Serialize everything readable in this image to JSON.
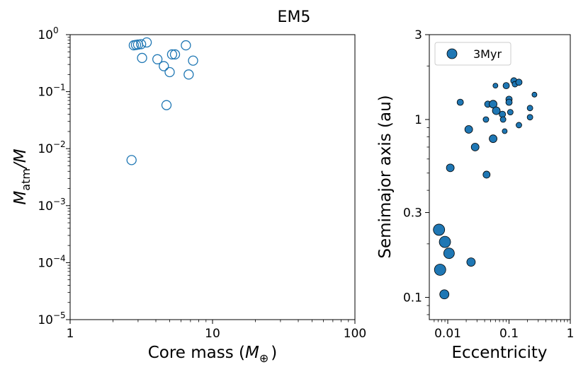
{
  "title": "EM5",
  "chart_data": [
    {
      "type": "scatter",
      "xlabel": "Core mass ($M_\\oplus$)",
      "xlabel_main": "Core mass (",
      "xlabel_sym": "M",
      "xlabel_sub": "⊕",
      "xlabel_end": ")",
      "ylabel": "$M_{atm}/M$",
      "ylabel_m": "M",
      "ylabel_sub": "atm",
      "ylabel_rest": "/M",
      "xscale": "log",
      "yscale": "log",
      "xlim": [
        1,
        100
      ],
      "ylim": [
        1e-05,
        1
      ],
      "xticks": [
        {
          "value": 1,
          "label": "1"
        },
        {
          "value": 10,
          "label": "10"
        },
        {
          "value": 100,
          "label": "100"
        }
      ],
      "yticks": [
        {
          "value": 1,
          "base": "10",
          "exp": "0"
        },
        {
          "value": 0.1,
          "base": "10",
          "exp": "−1"
        },
        {
          "value": 0.01,
          "base": "10",
          "exp": "−2"
        },
        {
          "value": 0.001,
          "base": "10",
          "exp": "−3"
        },
        {
          "value": 0.0001,
          "base": "10",
          "exp": "−4"
        },
        {
          "value": 1e-05,
          "base": "10",
          "exp": "−5"
        }
      ],
      "marker": "open-circle",
      "color": "#1f77b4",
      "points": [
        {
          "x": 2.7,
          "y": 0.0063
        },
        {
          "x": 2.8,
          "y": 0.65
        },
        {
          "x": 2.9,
          "y": 0.66
        },
        {
          "x": 3.0,
          "y": 0.67
        },
        {
          "x": 3.15,
          "y": 0.68
        },
        {
          "x": 3.2,
          "y": 0.39
        },
        {
          "x": 3.45,
          "y": 0.73
        },
        {
          "x": 4.1,
          "y": 0.37
        },
        {
          "x": 4.55,
          "y": 0.28
        },
        {
          "x": 4.75,
          "y": 0.058
        },
        {
          "x": 5.0,
          "y": 0.22
        },
        {
          "x": 5.2,
          "y": 0.45
        },
        {
          "x": 5.45,
          "y": 0.45
        },
        {
          "x": 6.5,
          "y": 0.65
        },
        {
          "x": 6.8,
          "y": 0.2
        },
        {
          "x": 7.3,
          "y": 0.35
        }
      ]
    },
    {
      "type": "scatter",
      "xlabel": "Eccentricity",
      "ylabel": "Semimajor axis (au)",
      "xscale": "log",
      "yscale": "log",
      "xlim": [
        0.005,
        1
      ],
      "ylim": [
        0.075,
        3
      ],
      "xticks": [
        {
          "value": 0.01,
          "label": "0.01"
        },
        {
          "value": 0.1,
          "label": "0.1"
        },
        {
          "value": 1,
          "label": "1"
        }
      ],
      "yticks": [
        {
          "value": 0.1,
          "label": "0.1"
        },
        {
          "value": 0.3,
          "label": "0.3"
        },
        {
          "value": 1,
          "label": "1"
        },
        {
          "value": 3,
          "label": "3"
        }
      ],
      "legend": {
        "label": "3Myr",
        "position": "top-left"
      },
      "color": "#1f77b4",
      "marker": "filled-circle",
      "points": [
        {
          "x": 0.0072,
          "y": 0.24,
          "size": 8
        },
        {
          "x": 0.009,
          "y": 0.205,
          "size": 8
        },
        {
          "x": 0.0105,
          "y": 0.177,
          "size": 7.5
        },
        {
          "x": 0.0075,
          "y": 0.143,
          "size": 8
        },
        {
          "x": 0.0088,
          "y": 0.104,
          "size": 6.5
        },
        {
          "x": 0.024,
          "y": 0.158,
          "size": 6
        },
        {
          "x": 0.011,
          "y": 0.535,
          "size": 5.5
        },
        {
          "x": 0.043,
          "y": 0.49,
          "size": 5
        },
        {
          "x": 0.028,
          "y": 0.7,
          "size": 5.5
        },
        {
          "x": 0.022,
          "y": 0.88,
          "size": 5.5
        },
        {
          "x": 0.055,
          "y": 0.78,
          "size": 5.5
        },
        {
          "x": 0.016,
          "y": 1.25,
          "size": 4.5
        },
        {
          "x": 0.042,
          "y": 1.0,
          "size": 4
        },
        {
          "x": 0.045,
          "y": 1.22,
          "size": 4.5
        },
        {
          "x": 0.055,
          "y": 1.22,
          "size": 5.5
        },
        {
          "x": 0.062,
          "y": 1.12,
          "size": 5.5
        },
        {
          "x": 0.06,
          "y": 1.55,
          "size": 3.5
        },
        {
          "x": 0.078,
          "y": 1.07,
          "size": 4.5
        },
        {
          "x": 0.08,
          "y": 1.0,
          "size": 4
        },
        {
          "x": 0.085,
          "y": 0.86,
          "size": 3.5
        },
        {
          "x": 0.09,
          "y": 1.55,
          "size": 4.5
        },
        {
          "x": 0.1,
          "y": 1.3,
          "size": 4.5
        },
        {
          "x": 0.105,
          "y": 1.1,
          "size": 4
        },
        {
          "x": 0.1,
          "y": 1.25,
          "size": 4.5
        },
        {
          "x": 0.12,
          "y": 1.65,
          "size": 4.5
        },
        {
          "x": 0.125,
          "y": 1.58,
          "size": 4
        },
        {
          "x": 0.145,
          "y": 1.62,
          "size": 4.5
        },
        {
          "x": 0.145,
          "y": 0.93,
          "size": 4
        },
        {
          "x": 0.22,
          "y": 1.16,
          "size": 4
        },
        {
          "x": 0.22,
          "y": 1.03,
          "size": 4
        },
        {
          "x": 0.26,
          "y": 1.38,
          "size": 3.5
        }
      ]
    }
  ]
}
